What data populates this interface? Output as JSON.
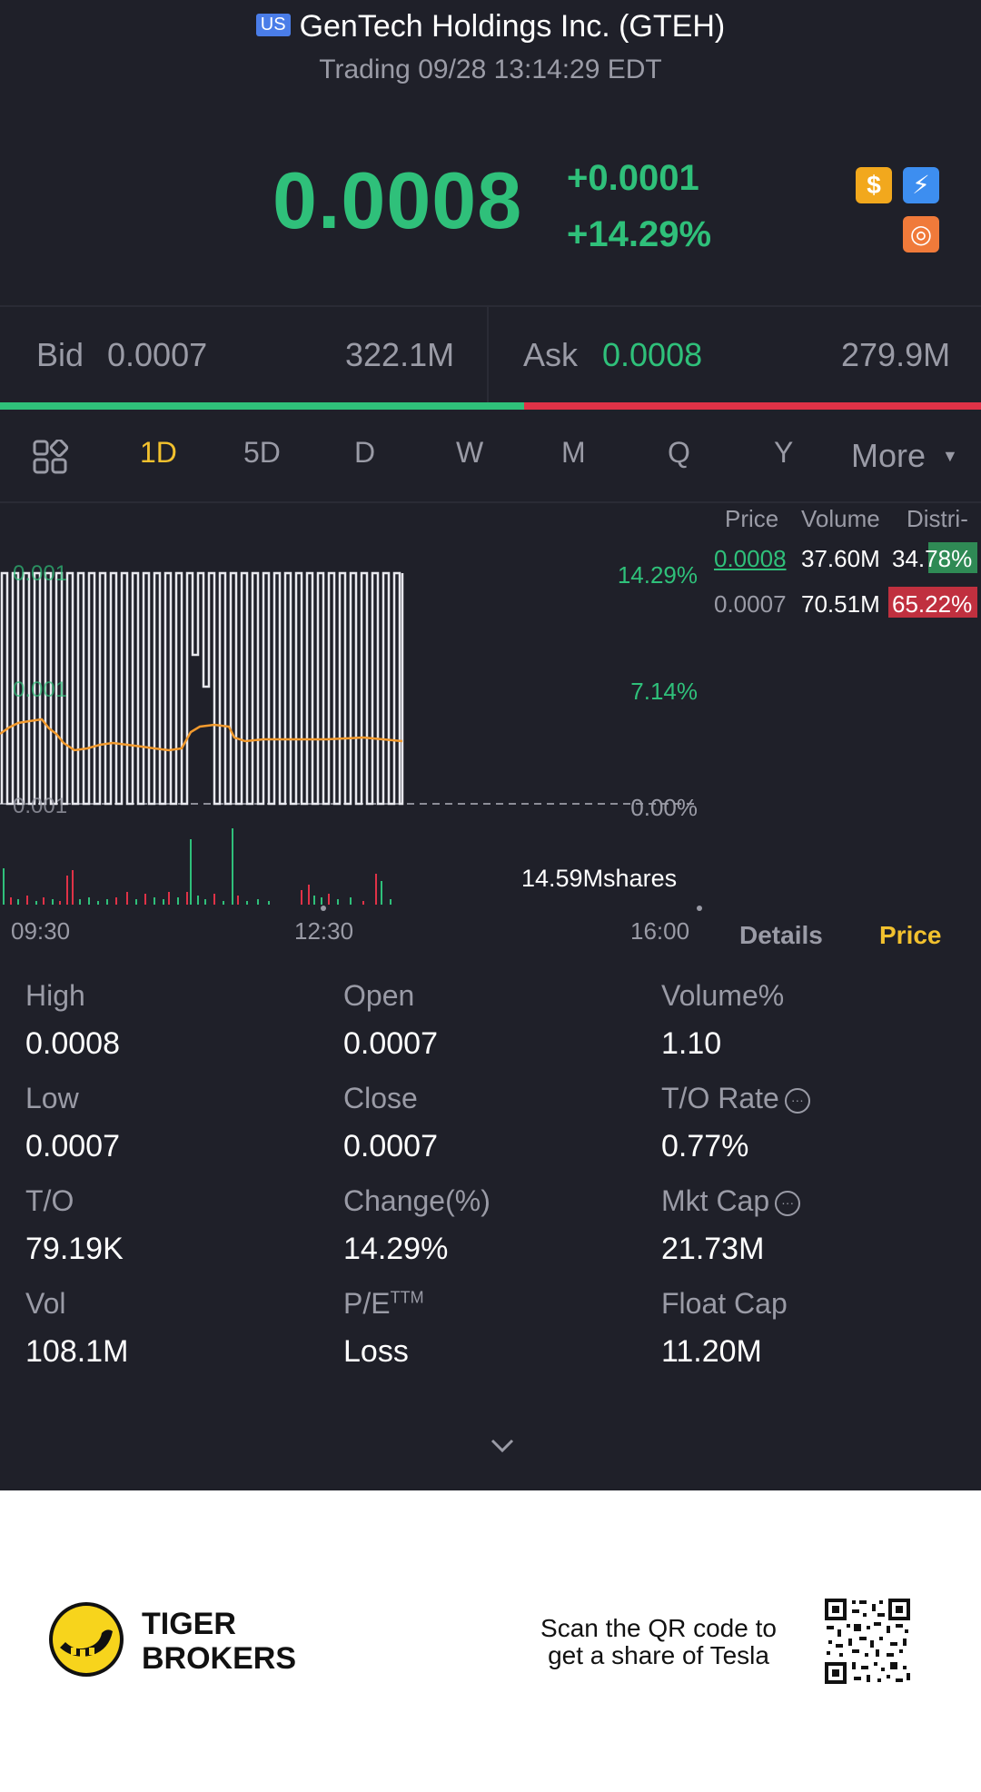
{
  "header": {
    "market_badge": "US",
    "title": "GenTech Holdings Inc. (GTEH)",
    "status": "Trading 09/28 13:14:29 EDT"
  },
  "quote": {
    "price": "0.0008",
    "change": "+0.0001",
    "change_pct": "+14.29%",
    "color_up": "#2fc07a"
  },
  "badges": [
    {
      "icon": "dollar-icon",
      "glyph": "$",
      "color": "#f2a81d"
    },
    {
      "icon": "lightning-icon",
      "glyph": "⚡",
      "color": "#3d8ef0"
    },
    {
      "icon": "chart-badge-icon",
      "glyph": "◎",
      "color": "#f07a3a"
    }
  ],
  "bid": {
    "label": "Bid",
    "price": "0.0007",
    "size": "322.1M"
  },
  "ask": {
    "label": "Ask",
    "price": "0.0008",
    "size": "279.9M"
  },
  "tabs": {
    "items": [
      "1D",
      "5D",
      "D",
      "W",
      "M",
      "Q",
      "Y"
    ],
    "active": "1D",
    "more_label": "More"
  },
  "chart": {
    "pct_labels": [
      "14.29%",
      "7.14%",
      "0.00%"
    ],
    "price_labels": [
      "0.001",
      "0.001",
      "0.001"
    ],
    "volume_label": "14.59Mshares",
    "time_labels": [
      "09:30",
      "12:30",
      "16:00"
    ],
    "accent_line": "#f29a2e"
  },
  "distribution": {
    "headers": [
      "Price",
      "Volume",
      "Distri-"
    ],
    "rows": [
      {
        "price": "0.0008",
        "volume": "37.60M",
        "pct": "34.78%",
        "color": "#2fc07a"
      },
      {
        "price": "0.0007",
        "volume": "70.51M",
        "pct": "65.22%",
        "color": "#e03247"
      }
    ]
  },
  "panel_tabs": {
    "details": "Details",
    "price": "Price"
  },
  "stats": {
    "high": {
      "label": "High",
      "value": "0.0008"
    },
    "open": {
      "label": "Open",
      "value": "0.0007"
    },
    "volume_pct": {
      "label": "Volume%",
      "value": "1.10"
    },
    "low": {
      "label": "Low",
      "value": "0.0007"
    },
    "close": {
      "label": "Close",
      "value": "0.0007"
    },
    "to_rate": {
      "label": "T/O Rate",
      "value": "0.77%"
    },
    "to": {
      "label": "T/O",
      "value": "79.19K"
    },
    "change_pct": {
      "label": "Change(%)",
      "value": "14.29%"
    },
    "mkt_cap": {
      "label": "Mkt Cap",
      "value": "21.73M"
    },
    "vol": {
      "label": "Vol",
      "value": "108.1M"
    },
    "pe": {
      "label": "P/E",
      "sup": "TTM",
      "value": "Loss"
    },
    "float_cap": {
      "label": "Float Cap",
      "value": "11.20M"
    }
  },
  "footer": {
    "brand_line1": "TIGER",
    "brand_line2": "BROKERS",
    "scan_line1": "Scan the QR code to",
    "scan_line2": "get a share of Tesla"
  }
}
